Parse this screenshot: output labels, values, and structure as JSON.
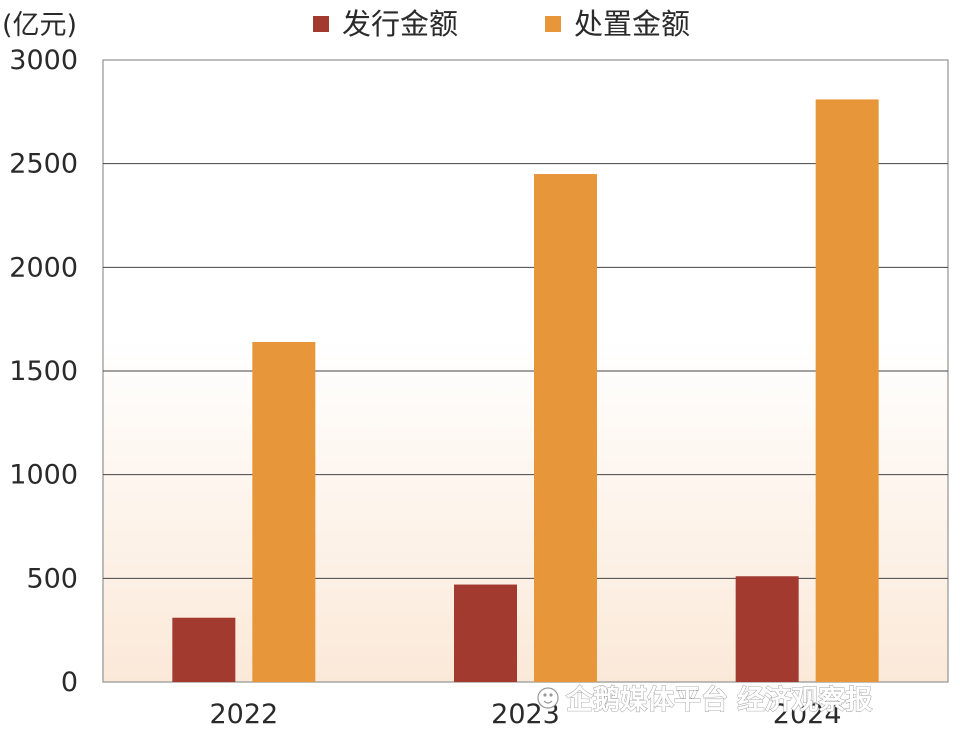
{
  "chart_data": {
    "type": "bar",
    "title": "",
    "xlabel": "",
    "ylabel": "",
    "unit_label": "(亿元)",
    "categories": [
      "2022",
      "2023",
      "2024"
    ],
    "series": [
      {
        "name": "发行金额",
        "values": [
          310,
          470,
          510
        ],
        "color": "#a33a30"
      },
      {
        "name": "处置金额",
        "values": [
          1640,
          2450,
          2810
        ],
        "color": "#e8963a"
      }
    ],
    "ylim": [
      0,
      3000
    ],
    "yticks": [
      0,
      500,
      1000,
      1500,
      2000,
      2500,
      3000
    ],
    "grid": true,
    "legend_position": "top-center",
    "plot_background": [
      "#ffffff",
      "#fbe9d8"
    ]
  },
  "watermark": {
    "text": "企鹅媒体平台 经济观察报",
    "icon": "penguin-icon"
  }
}
